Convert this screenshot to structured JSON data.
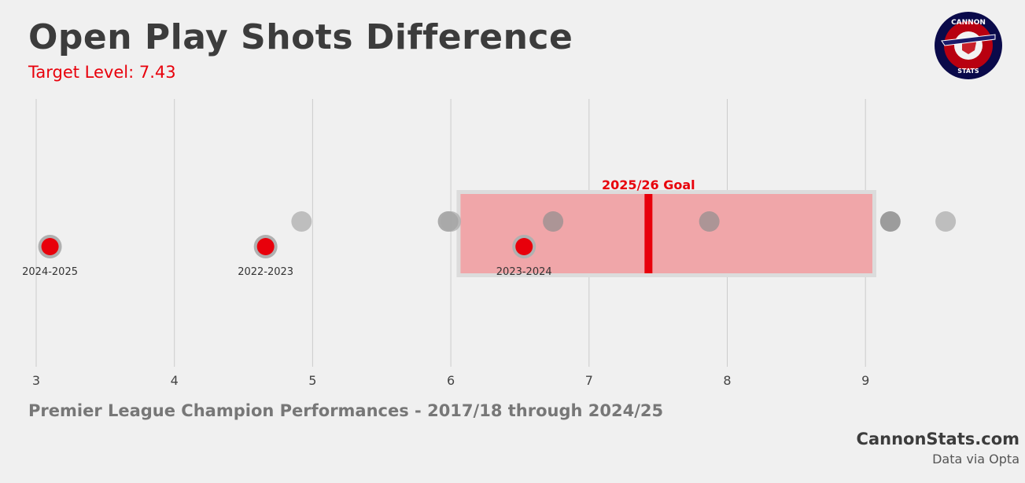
{
  "header": {
    "title": "Open Play Shots Difference",
    "subtitle": "Target Level: 7.43"
  },
  "logo": {
    "text_top": "CANNON",
    "text_bottom": "STATS"
  },
  "footer": {
    "caption": "Premier League Champion Performances - 2017/18 through 2024/25",
    "brand": "CannonStats.com",
    "source": "Data via Opta"
  },
  "colors": {
    "background": "#f0f0f0",
    "accent": "#e8000b",
    "band_fill": "#f0a6a9",
    "band_border": "#dcdcdc",
    "grid": "#cccccc",
    "title": "#3c3c3c"
  },
  "chart_data": {
    "type": "scatter",
    "title": "Open Play Shots Difference",
    "xlabel": "",
    "ylabel": "",
    "xlim": [
      3,
      10
    ],
    "xticks": [
      3,
      4,
      5,
      6,
      7,
      8,
      9
    ],
    "grid": true,
    "target": {
      "value": 7.43,
      "label": "2025/26 Goal"
    },
    "target_range": [
      6.07,
      9.05
    ],
    "highlighted": [
      {
        "season": "2024-2025",
        "value": 3.1
      },
      {
        "season": "2022-2023",
        "value": 4.66
      },
      {
        "season": "2023-2024",
        "value": 6.53
      }
    ],
    "others": [
      {
        "value": 4.92,
        "shade": "light"
      },
      {
        "value": 5.98,
        "shade": "medium"
      },
      {
        "value": 6.0,
        "shade": "light"
      },
      {
        "value": 6.74,
        "shade": "medium"
      },
      {
        "value": 7.87,
        "shade": "medium"
      },
      {
        "value": 9.18,
        "shade": "dark"
      },
      {
        "value": 9.58,
        "shade": "light"
      }
    ]
  }
}
